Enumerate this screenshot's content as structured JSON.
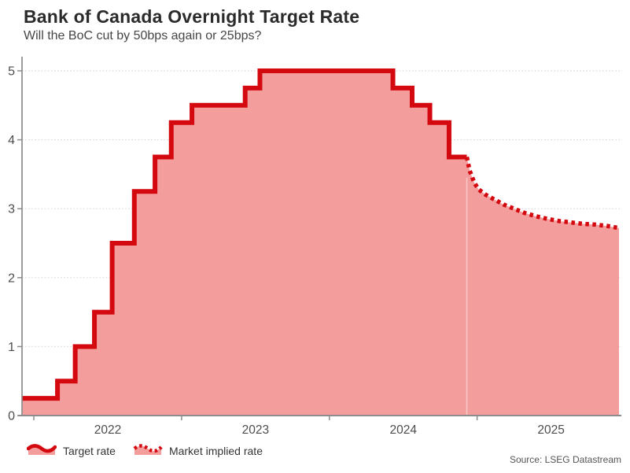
{
  "header": {
    "title": "Bank of Canada Overnight Target Rate",
    "subtitle": "Will the BoC cut by 50bps again or 25bps?"
  },
  "legend": {
    "items": [
      {
        "label": "Target rate",
        "style": "solid"
      },
      {
        "label": "Market implied rate",
        "style": "dotted"
      }
    ]
  },
  "source": "Source: LSEG Datastream",
  "colors": {
    "line": "#d40910",
    "fill": "#f49d9d",
    "grid": "#d8d8d8",
    "axis": "#8c8c8c",
    "tick_label": "#4d4d4d",
    "seam": "rgba(255,255,255,0.45)"
  },
  "chart_data": {
    "type": "area",
    "title": "Bank of Canada Overnight Target Rate",
    "subtitle": "Will the BoC cut by 50bps again or 25bps?",
    "xlabel": "",
    "ylabel": "",
    "xlim": [
      2021.92,
      2025.96
    ],
    "ylim": [
      0,
      5
    ],
    "yticks": [
      0,
      1,
      2,
      3,
      4,
      5
    ],
    "xticks": [
      2022,
      2023,
      2024,
      2025
    ],
    "grid": "horizontal-dotted",
    "legend_position": "bottom-left",
    "series": [
      {
        "name": "Target rate",
        "type": "step",
        "line_style": "solid",
        "points": [
          [
            2021.92,
            0.25
          ],
          [
            2022.16,
            0.5
          ],
          [
            2022.28,
            1.0
          ],
          [
            2022.41,
            1.5
          ],
          [
            2022.53,
            2.5
          ],
          [
            2022.68,
            3.25
          ],
          [
            2022.82,
            3.75
          ],
          [
            2022.93,
            4.25
          ],
          [
            2023.07,
            4.5
          ],
          [
            2023.43,
            4.75
          ],
          [
            2023.53,
            5.0
          ],
          [
            2024.43,
            4.75
          ],
          [
            2024.56,
            4.5
          ],
          [
            2024.68,
            4.25
          ],
          [
            2024.81,
            3.75
          ]
        ],
        "end_x": 2024.93
      },
      {
        "name": "Market implied rate",
        "type": "line",
        "line_style": "dotted",
        "points": [
          [
            2024.93,
            3.75
          ],
          [
            2024.95,
            3.55
          ],
          [
            2024.98,
            3.38
          ],
          [
            2025.01,
            3.28
          ],
          [
            2025.06,
            3.2
          ],
          [
            2025.12,
            3.13
          ],
          [
            2025.18,
            3.06
          ],
          [
            2025.25,
            3.0
          ],
          [
            2025.32,
            2.94
          ],
          [
            2025.4,
            2.89
          ],
          [
            2025.48,
            2.85
          ],
          [
            2025.56,
            2.82
          ],
          [
            2025.64,
            2.8
          ],
          [
            2025.72,
            2.78
          ],
          [
            2025.8,
            2.77
          ],
          [
            2025.88,
            2.75
          ],
          [
            2025.96,
            2.72
          ]
        ]
      }
    ]
  }
}
